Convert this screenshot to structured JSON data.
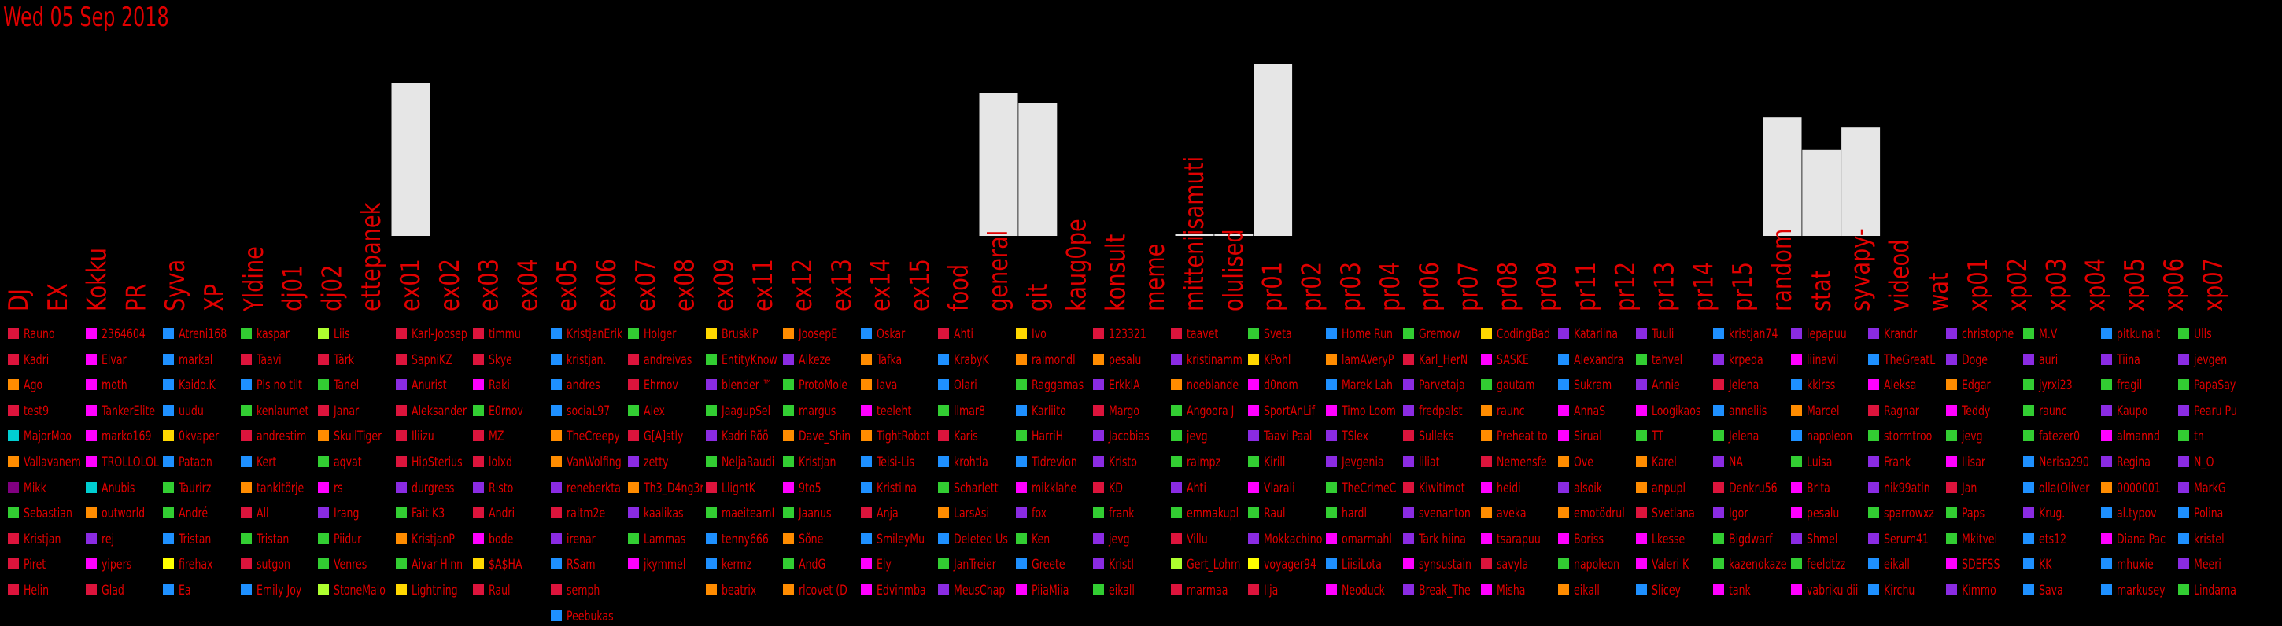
{
  "title": "Wed 05 Sep 2018",
  "chart_data": {
    "type": "bar",
    "title": "Wed 05 Sep 2018",
    "bar_color": "#e6e6e6",
    "text_color": "#e00000",
    "background": "#000000",
    "ylim": [
      0,
      100
    ],
    "categories": [
      "DJ",
      "EX",
      "Kokku",
      "PR",
      "Syva",
      "XP",
      "Yldine",
      "dj01",
      "dj02",
      "ettepanek",
      "ex01",
      "ex02",
      "ex03",
      "ex04",
      "ex05",
      "ex06",
      "ex07",
      "ex08",
      "ex09",
      "ex11",
      "ex12",
      "ex13",
      "ex14",
      "ex15",
      "food",
      "general",
      "git",
      "kaug0pe",
      "konsult",
      "meme",
      "mitteniisamuti",
      "olulised",
      "pr01",
      "pr02",
      "pr03",
      "pr04",
      "pr06",
      "pr07",
      "pr08",
      "pr09",
      "pr11",
      "pr12",
      "pr13",
      "pr14",
      "pr15",
      "random",
      "stat",
      "syvapy-",
      "videod",
      "wat",
      "xp01",
      "xp02",
      "xp03",
      "xp04",
      "xp05",
      "xp06",
      "xp07"
    ],
    "values": [
      0,
      0,
      0,
      0,
      0,
      0,
      0,
      0,
      0,
      0,
      75,
      0,
      0,
      0,
      0,
      0,
      0,
      0,
      0,
      0,
      0,
      0,
      0,
      0,
      0,
      70,
      65,
      0,
      0,
      0,
      1,
      1,
      84,
      0,
      0,
      0,
      0,
      0,
      0,
      0,
      0,
      0,
      0,
      0,
      0,
      58,
      42,
      53,
      0,
      0,
      0,
      0,
      0,
      0,
      0,
      0,
      0
    ]
  },
  "legend": [
    [
      [
        "Rauno",
        "#dc143c"
      ],
      [
        "Kadri",
        "#dc143c"
      ],
      [
        "Ago",
        "#ff8c00"
      ],
      [
        "test9",
        "#dc143c"
      ],
      [
        "MajorMoo",
        "#00ced1"
      ],
      [
        "Vallavanem",
        "#ff8c00"
      ],
      [
        "Mikk",
        "#800080"
      ],
      [
        "Sebastian",
        "#32cd32"
      ],
      [
        "Kristjan",
        "#dc143c"
      ],
      [
        "Piret",
        "#dc143c"
      ],
      [
        "Helin",
        "#dc143c"
      ]
    ],
    [
      [
        "2364604",
        "#ff00ff"
      ],
      [
        "Elvar",
        "#ff00ff"
      ],
      [
        "moth",
        "#ff00ff"
      ],
      [
        "TankerElite",
        "#ff00ff"
      ],
      [
        "marko169",
        "#ff00ff"
      ],
      [
        "TROLLOLOL",
        "#ff00ff"
      ],
      [
        "Anubis",
        "#00ced1"
      ],
      [
        "outworld",
        "#ff8c00"
      ],
      [
        "rej",
        "#8a2be2"
      ],
      [
        "yipers",
        "#ff00ff"
      ],
      [
        "Glad",
        "#dc143c"
      ]
    ],
    [
      [
        "Atreni168",
        "#1e90ff"
      ],
      [
        "markal",
        "#1e90ff"
      ],
      [
        "Kaido.K",
        "#1e90ff"
      ],
      [
        "uudu",
        "#1e90ff"
      ],
      [
        "0kvaper",
        "#ffd700"
      ],
      [
        "Pataon",
        "#1e90ff"
      ],
      [
        "Taurirz",
        "#32cd32"
      ],
      [
        "André",
        "#32cd32"
      ],
      [
        "Tristan",
        "#1e90ff"
      ],
      [
        "firehax",
        "#ffff00"
      ],
      [
        "Ea",
        "#1e90ff"
      ]
    ],
    [
      [
        "kaspar",
        "#32cd32"
      ],
      [
        "Taavi",
        "#dc143c"
      ],
      [
        "Pls no tilt",
        "#1e90ff"
      ],
      [
        "kenlaumet",
        "#32cd32"
      ],
      [
        "andrestim",
        "#dc143c"
      ],
      [
        "Kert",
        "#1e90ff"
      ],
      [
        "tankitörje",
        "#ff8c00"
      ],
      [
        "All",
        "#dc143c"
      ],
      [
        "Tristan",
        "#32cd32"
      ],
      [
        "sutgon",
        "#dc143c"
      ],
      [
        "Emily Joy",
        "#1e90ff"
      ]
    ],
    [
      [
        "Liis",
        "#adff2f"
      ],
      [
        "Tärk",
        "#dc143c"
      ],
      [
        "Tanel",
        "#32cd32"
      ],
      [
        "Janar",
        "#dc143c"
      ],
      [
        "SkullTiger",
        "#ff8c00"
      ],
      [
        "aqvat",
        "#32cd32"
      ],
      [
        "rs",
        "#ff00ff"
      ],
      [
        "Irang",
        "#8a2be2"
      ],
      [
        "Piidur",
        "#32cd32"
      ],
      [
        "Venres",
        "#32cd32"
      ],
      [
        "StoneMalo",
        "#adff2f"
      ]
    ],
    [
      [
        "Karl-Joosep",
        "#dc143c"
      ],
      [
        "SapniKZ",
        "#dc143c"
      ],
      [
        "Anurist",
        "#8a2be2"
      ],
      [
        "Aleksander",
        "#dc143c"
      ],
      [
        "Iliizu",
        "#dc143c"
      ],
      [
        "HipSterius",
        "#dc143c"
      ],
      [
        "durgress",
        "#8a2be2"
      ],
      [
        "Fait K3",
        "#32cd32"
      ],
      [
        "KristjanP",
        "#ff8c00"
      ],
      [
        "Aivar Hinn",
        "#32cd32"
      ],
      [
        "Lightning",
        "#ffd700"
      ]
    ],
    [
      [
        "timmu",
        "#dc143c"
      ],
      [
        "Skye",
        "#dc143c"
      ],
      [
        "Raki",
        "#ff00ff"
      ],
      [
        "E0rnov",
        "#32cd32"
      ],
      [
        "MZ",
        "#dc143c"
      ],
      [
        "lolxd",
        "#dc143c"
      ],
      [
        "Risto",
        "#8a2be2"
      ],
      [
        "Andri",
        "#dc143c"
      ],
      [
        "bode",
        "#ff00ff"
      ],
      [
        "$A$HA",
        "#ffd700"
      ],
      [
        "Raul",
        "#dc143c"
      ]
    ],
    [
      [
        "KristjanErik",
        "#1e90ff"
      ],
      [
        "kristjan.",
        "#1e90ff"
      ],
      [
        "andres",
        "#1e90ff"
      ],
      [
        "sociaL97",
        "#1e90ff"
      ],
      [
        "TheCreepy",
        "#ff8c00"
      ],
      [
        "VanWolfing",
        "#ff8c00"
      ],
      [
        "reneberkta",
        "#8a2be2"
      ],
      [
        "raltm2e",
        "#dc143c"
      ],
      [
        "irenar",
        "#8a2be2"
      ],
      [
        "RSam",
        "#1e90ff"
      ],
      [
        "semph",
        "#dc143c"
      ],
      [
        "Peebukas",
        "#1e90ff"
      ]
    ],
    [
      [
        "Holger",
        "#32cd32"
      ],
      [
        "andreivas",
        "#dc143c"
      ],
      [
        "Ehrnov",
        "#dc143c"
      ],
      [
        "Alex",
        "#32cd32"
      ],
      [
        "G[A]stly",
        "#dc143c"
      ],
      [
        "zetty",
        "#8a2be2"
      ],
      [
        "Th3_D4ng3r",
        "#ff8c00"
      ],
      [
        "kaalikas",
        "#8a2be2"
      ],
      [
        "Lammas",
        "#32cd32"
      ],
      [
        "jkymmel",
        "#ff00ff"
      ]
    ],
    [
      [
        "BruskiP",
        "#ffd700"
      ],
      [
        "EntityKnow",
        "#32cd32"
      ],
      [
        "blender ™",
        "#8a2be2"
      ],
      [
        "JaagupSel",
        "#32cd32"
      ],
      [
        "Kadri Rõõ",
        "#8a2be2"
      ],
      [
        "NeljaRaudi",
        "#32cd32"
      ],
      [
        "LlightK",
        "#dc143c"
      ],
      [
        "maeiteamI",
        "#32cd32"
      ],
      [
        "tenny666",
        "#1e90ff"
      ],
      [
        "kermz",
        "#1e90ff"
      ],
      [
        "beatrix",
        "#ff8c00"
      ]
    ],
    [
      [
        "JoosepE",
        "#ff8c00"
      ],
      [
        "Alkeze",
        "#8a2be2"
      ],
      [
        "ProtoMole",
        "#32cd32"
      ],
      [
        "margus",
        "#32cd32"
      ],
      [
        "Dave_Shin",
        "#ff8c00"
      ],
      [
        "Kristjan",
        "#32cd32"
      ],
      [
        "9to5",
        "#ff00ff"
      ],
      [
        "Jaanus",
        "#32cd32"
      ],
      [
        "Sõne",
        "#ff8c00"
      ],
      [
        "AndG",
        "#32cd32"
      ],
      [
        "rlcovet (D",
        "#ff8c00"
      ]
    ],
    [
      [
        "Oskar",
        "#1e90ff"
      ],
      [
        "Tafka",
        "#ff8c00"
      ],
      [
        "lava",
        "#ff8c00"
      ],
      [
        "teeleht",
        "#ff00ff"
      ],
      [
        "TightRobot",
        "#ff8c00"
      ],
      [
        "Teisi-Lis",
        "#1e90ff"
      ],
      [
        "Kristiina",
        "#1e90ff"
      ],
      [
        "Anja",
        "#dc143c"
      ],
      [
        "SmileyMu",
        "#1e90ff"
      ],
      [
        "Ely",
        "#ff00ff"
      ],
      [
        "Edvinmba",
        "#ff00ff"
      ]
    ],
    [
      [
        "Ahti",
        "#dc143c"
      ],
      [
        "KrabyK",
        "#1e90ff"
      ],
      [
        "Olari",
        "#1e90ff"
      ],
      [
        "llmar8",
        "#32cd32"
      ],
      [
        "Karis",
        "#dc143c"
      ],
      [
        "krohtla",
        "#1e90ff"
      ],
      [
        "Scharlett",
        "#32cd32"
      ],
      [
        "LarsAsi",
        "#ff8c00"
      ],
      [
        "Deleted Us",
        "#1e90ff"
      ],
      [
        "JanTreier",
        "#32cd32"
      ],
      [
        "MeusChap",
        "#8a2be2"
      ]
    ],
    [
      [
        "Ivo",
        "#ffd700"
      ],
      [
        "raimondl",
        "#ff8c00"
      ],
      [
        "Raggamas",
        "#32cd32"
      ],
      [
        "Karliito",
        "#1e90ff"
      ],
      [
        "HarriH",
        "#32cd32"
      ],
      [
        "Tidrevion",
        "#1e90ff"
      ],
      [
        "mikklahe",
        "#ff00ff"
      ],
      [
        "fox",
        "#8a2be2"
      ],
      [
        "Ken",
        "#32cd32"
      ],
      [
        "Greete",
        "#1e90ff"
      ],
      [
        "PiiaMiia",
        "#ff00ff"
      ]
    ],
    [
      [
        "123321",
        "#dc143c"
      ],
      [
        "pesalu",
        "#ff8c00"
      ],
      [
        "ErkkiA",
        "#8a2be2"
      ],
      [
        "Margo",
        "#dc143c"
      ],
      [
        "Jacobias",
        "#8a2be2"
      ],
      [
        "Kristo",
        "#8a2be2"
      ],
      [
        "KD",
        "#dc143c"
      ],
      [
        "frank",
        "#32cd32"
      ],
      [
        "jevg",
        "#8a2be2"
      ],
      [
        "KristI",
        "#8a2be2"
      ],
      [
        "eikall",
        "#32cd32"
      ]
    ],
    [
      [
        "taavet",
        "#dc143c"
      ],
      [
        "kristinamm",
        "#8a2be2"
      ],
      [
        "noeblande",
        "#ff8c00"
      ],
      [
        "Angoora J",
        "#32cd32"
      ],
      [
        "jevg",
        "#32cd32"
      ],
      [
        "raimpz",
        "#32cd32"
      ],
      [
        "Ahti",
        "#8a2be2"
      ],
      [
        "emmakupl",
        "#32cd32"
      ],
      [
        "Villu",
        "#dc143c"
      ],
      [
        "Gert_Lohm",
        "#adff2f"
      ],
      [
        "marmaa",
        "#dc143c"
      ]
    ],
    [
      [
        "Sveta",
        "#32cd32"
      ],
      [
        "KPohl",
        "#ffd700"
      ],
      [
        "d0nom",
        "#ff00ff"
      ],
      [
        "SportAnLif",
        "#ff00ff"
      ],
      [
        "Taavi Paal",
        "#8a2be2"
      ],
      [
        "Kirill",
        "#32cd32"
      ],
      [
        "Vlarali",
        "#ff00ff"
      ],
      [
        "Raul",
        "#32cd32"
      ],
      [
        "Mokkachino",
        "#8a2be2"
      ],
      [
        "voyager94",
        "#ffff00"
      ],
      [
        "Ilja",
        "#dc143c"
      ]
    ],
    [
      [
        "Home Run",
        "#1e90ff"
      ],
      [
        "lamAVeryP",
        "#ff8c00"
      ],
      [
        "Marek Lah",
        "#1e90ff"
      ],
      [
        "Timo Loom",
        "#ff00ff"
      ],
      [
        "TSlex",
        "#8a2be2"
      ],
      [
        "Jevgenia",
        "#8a2be2"
      ],
      [
        "TheCrimeC",
        "#32cd32"
      ],
      [
        "hardl",
        "#32cd32"
      ],
      [
        "omarmahl",
        "#ff00ff"
      ],
      [
        "LiisiLota",
        "#1e90ff"
      ],
      [
        "Neoduck",
        "#ff00ff"
      ]
    ],
    [
      [
        "Gremow",
        "#32cd32"
      ],
      [
        "Karl_HerN",
        "#dc143c"
      ],
      [
        "Parvetaja",
        "#8a2be2"
      ],
      [
        "fredpalst",
        "#8a2be2"
      ],
      [
        "Sulleks",
        "#dc143c"
      ],
      [
        "liliat",
        "#8a2be2"
      ],
      [
        "Kiwitimot",
        "#dc143c"
      ],
      [
        "svenanton",
        "#8a2be2"
      ],
      [
        "Tark hiina",
        "#8a2be2"
      ],
      [
        "synsustain",
        "#ff00ff"
      ],
      [
        "Break_The",
        "#8a2be2"
      ]
    ],
    [
      [
        "CodingBad",
        "#ffd700"
      ],
      [
        "SASKE",
        "#ff00ff"
      ],
      [
        "gautam",
        "#32cd32"
      ],
      [
        "raunc",
        "#ff8c00"
      ],
      [
        "Preheat to",
        "#ff8c00"
      ],
      [
        "Nemensfe",
        "#dc143c"
      ],
      [
        "heidi",
        "#ff00ff"
      ],
      [
        "aveka",
        "#ff8c00"
      ],
      [
        "tsarapuu",
        "#ff00ff"
      ],
      [
        "savyla",
        "#dc143c"
      ],
      [
        "Misha",
        "#ff00ff"
      ]
    ],
    [
      [
        "Katariina",
        "#8a2be2"
      ],
      [
        "Alexandra",
        "#1e90ff"
      ],
      [
        "Sukram",
        "#1e90ff"
      ],
      [
        "AnnaS",
        "#ff00ff"
      ],
      [
        "Sirual",
        "#ff00ff"
      ],
      [
        "Ove",
        "#ff8c00"
      ],
      [
        "alsoik",
        "#8a2be2"
      ],
      [
        "emotödrul",
        "#ff8c00"
      ],
      [
        "Boriss",
        "#ff00ff"
      ],
      [
        "napoleon",
        "#32cd32"
      ],
      [
        "eikall",
        "#ff8c00"
      ]
    ],
    [
      [
        "Tuuli",
        "#8a2be2"
      ],
      [
        "tahvel",
        "#32cd32"
      ],
      [
        "Annie",
        "#8a2be2"
      ],
      [
        "Loogikaos",
        "#ff00ff"
      ],
      [
        "TT",
        "#32cd32"
      ],
      [
        "Karel",
        "#ff8c00"
      ],
      [
        "anpupl",
        "#ff8c00"
      ],
      [
        "Svetlana",
        "#dc143c"
      ],
      [
        "Lkesse",
        "#ff00ff"
      ],
      [
        "Valeri K",
        "#ff00ff"
      ],
      [
        "Slicey",
        "#1e90ff"
      ]
    ],
    [
      [
        "kristjan74",
        "#1e90ff"
      ],
      [
        "krpeda",
        "#8a2be2"
      ],
      [
        "Jelena",
        "#dc143c"
      ],
      [
        "anneliis",
        "#1e90ff"
      ],
      [
        "Jelena",
        "#32cd32"
      ],
      [
        "NA",
        "#8a2be2"
      ],
      [
        "Denkru56",
        "#dc143c"
      ],
      [
        "Igor",
        "#8a2be2"
      ],
      [
        "Bigdwarf",
        "#32cd32"
      ],
      [
        "kazenokaze",
        "#32cd32"
      ],
      [
        "tank",
        "#ff00ff"
      ]
    ],
    [
      [
        "lepapuu",
        "#8a2be2"
      ],
      [
        "liinavil",
        "#ff00ff"
      ],
      [
        "kkirss",
        "#1e90ff"
      ],
      [
        "Marcel",
        "#ff8c00"
      ],
      [
        "napoleon",
        "#1e90ff"
      ],
      [
        "Luisa",
        "#32cd32"
      ],
      [
        "Brita",
        "#ff00ff"
      ],
      [
        "pesalu",
        "#ff00ff"
      ],
      [
        "Shmel",
        "#8a2be2"
      ],
      [
        "feeldtzz",
        "#32cd32"
      ],
      [
        "vabriku dii",
        "#ff00ff"
      ]
    ],
    [
      [
        "Krandr",
        "#8a2be2"
      ],
      [
        "TheGreatL",
        "#1e90ff"
      ],
      [
        "Aleksa",
        "#ff00ff"
      ],
      [
        "Ragnar",
        "#dc143c"
      ],
      [
        "stormtroo",
        "#32cd32"
      ],
      [
        "Frank",
        "#8a2be2"
      ],
      [
        "nik99atin",
        "#8a2be2"
      ],
      [
        "sparrowxz",
        "#32cd32"
      ],
      [
        "Serum41",
        "#8a2be2"
      ],
      [
        "eikall",
        "#1e90ff"
      ],
      [
        "Kirchu",
        "#1e90ff"
      ]
    ],
    [
      [
        "christophe",
        "#8a2be2"
      ],
      [
        "Doge",
        "#8a2be2"
      ],
      [
        "Edgar",
        "#ff8c00"
      ],
      [
        "Teddy",
        "#ff00ff"
      ],
      [
        "jevg",
        "#32cd32"
      ],
      [
        "Ilisar",
        "#ff00ff"
      ],
      [
        "Jan",
        "#dc143c"
      ],
      [
        "Paps",
        "#32cd32"
      ],
      [
        "Mkitvel",
        "#32cd32"
      ],
      [
        "SDEFSS",
        "#ff00ff"
      ],
      [
        "Kimmo",
        "#8a2be2"
      ]
    ],
    [
      [
        "M.V",
        "#32cd32"
      ],
      [
        "auri",
        "#8a2be2"
      ],
      [
        "jyrxi23",
        "#32cd32"
      ],
      [
        "raunc",
        "#32cd32"
      ],
      [
        "fatezer0",
        "#32cd32"
      ],
      [
        "Nerisa290",
        "#1e90ff"
      ],
      [
        "olla(Oliver",
        "#1e90ff"
      ],
      [
        "Krug.",
        "#8a2be2"
      ],
      [
        "ets12",
        "#1e90ff"
      ],
      [
        "KK",
        "#1e90ff"
      ],
      [
        "Sava",
        "#1e90ff"
      ]
    ],
    [
      [
        "pitkunait",
        "#1e90ff"
      ],
      [
        "Tiina",
        "#8a2be2"
      ],
      [
        "fragil",
        "#32cd32"
      ],
      [
        "Kaupo",
        "#8a2be2"
      ],
      [
        "almannd",
        "#ff00ff"
      ],
      [
        "Regina",
        "#8a2be2"
      ],
      [
        "0000001",
        "#ff8c00"
      ],
      [
        "al.typov",
        "#1e90ff"
      ],
      [
        "Diana Pac",
        "#ff00ff"
      ],
      [
        "mhuxie",
        "#1e90ff"
      ],
      [
        "markusey",
        "#1e90ff"
      ]
    ],
    [
      [
        "Ulls",
        "#32cd32"
      ],
      [
        "jevgen",
        "#8a2be2"
      ],
      [
        "PapaSay",
        "#32cd32"
      ],
      [
        "Pearu Pu",
        "#8a2be2"
      ],
      [
        "tn",
        "#32cd32"
      ],
      [
        "N_O",
        "#8a2be2"
      ],
      [
        "MarkG",
        "#8a2be2"
      ],
      [
        "Polina",
        "#1e90ff"
      ],
      [
        "kristel",
        "#1e90ff"
      ],
      [
        "Meeri",
        "#8a2be2"
      ],
      [
        "Lindama",
        "#32cd32"
      ]
    ]
  ]
}
